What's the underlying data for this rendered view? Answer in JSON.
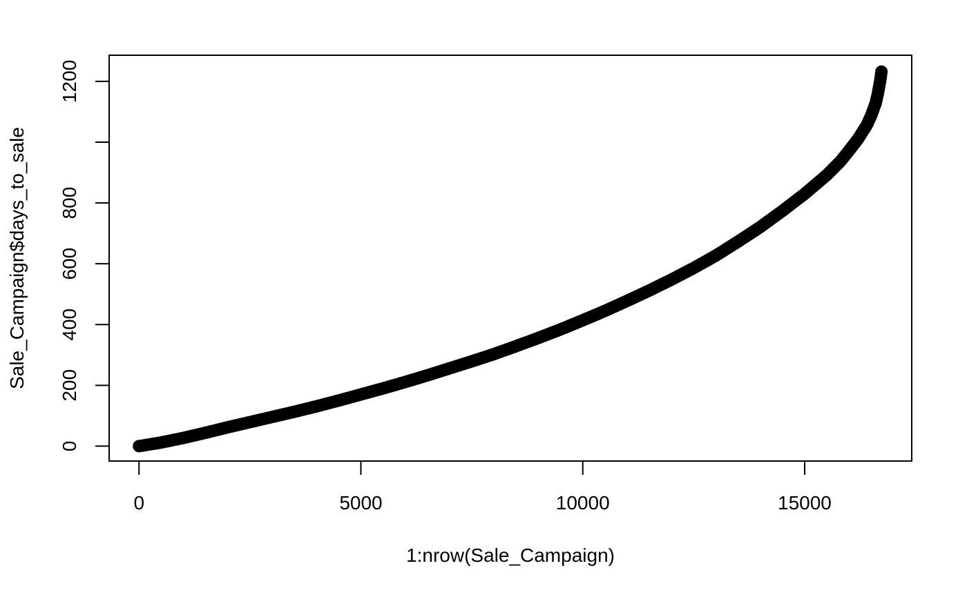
{
  "chart_data": {
    "type": "scatter",
    "title": "",
    "xlabel": "1:nrow(Sale_Campaign)",
    "ylabel": "Sale_Campaign$days_to_sale",
    "xlim": [
      -673,
      17413
    ],
    "ylim": [
      -49,
      1286
    ],
    "x_ticks": [
      0,
      5000,
      10000,
      15000
    ],
    "x_tick_labels": [
      "0",
      "5000",
      "10000",
      "15000"
    ],
    "y_ticks": [
      0,
      200,
      400,
      600,
      800,
      1000,
      1200
    ],
    "y_tick_labels": [
      "0",
      "200",
      "400",
      "600",
      "800",
      "",
      "1200"
    ],
    "grid": false,
    "legend": "none",
    "point_color": "#000000",
    "series": [
      {
        "points": [
          [
            0,
            0
          ],
          [
            500,
            12
          ],
          [
            1000,
            27
          ],
          [
            1500,
            44
          ],
          [
            2000,
            62
          ],
          [
            2500,
            79
          ],
          [
            3000,
            96
          ],
          [
            3500,
            113
          ],
          [
            4000,
            131
          ],
          [
            4500,
            150
          ],
          [
            5000,
            170
          ],
          [
            5500,
            190
          ],
          [
            6000,
            211
          ],
          [
            6500,
            233
          ],
          [
            7000,
            256
          ],
          [
            7500,
            279
          ],
          [
            8000,
            303
          ],
          [
            8500,
            329
          ],
          [
            9000,
            356
          ],
          [
            9500,
            384
          ],
          [
            10000,
            414
          ],
          [
            10500,
            445
          ],
          [
            11000,
            478
          ],
          [
            11500,
            512
          ],
          [
            12000,
            548
          ],
          [
            12500,
            586
          ],
          [
            13000,
            627
          ],
          [
            13500,
            673
          ],
          [
            14000,
            721
          ],
          [
            14500,
            774
          ],
          [
            15000,
            830
          ],
          [
            15500,
            892
          ],
          [
            15800,
            936
          ],
          [
            16000,
            972
          ],
          [
            16200,
            1010
          ],
          [
            16400,
            1056
          ],
          [
            16500,
            1088
          ],
          [
            16600,
            1128
          ],
          [
            16650,
            1160
          ],
          [
            16700,
            1200
          ],
          [
            16720,
            1220
          ],
          [
            16730,
            1232
          ]
        ]
      }
    ]
  }
}
